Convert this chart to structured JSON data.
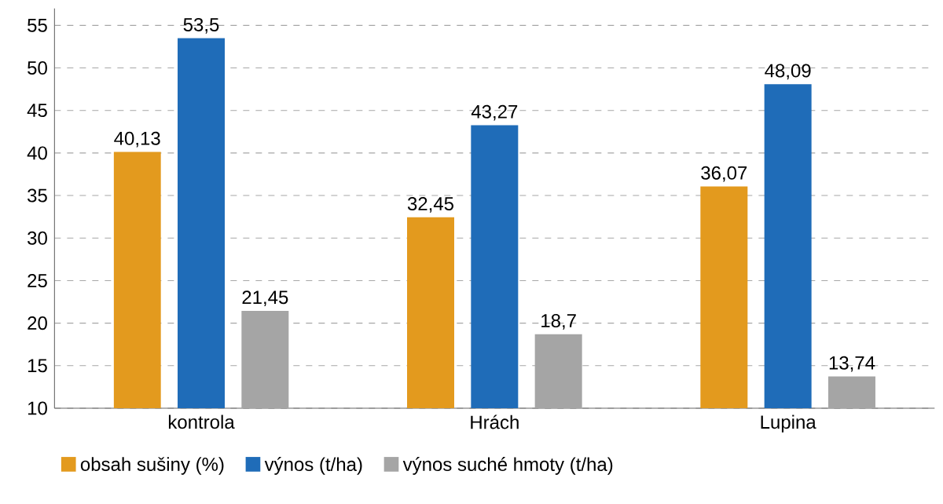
{
  "chart_data": {
    "type": "bar",
    "categories": [
      "kontrola",
      "Hrách",
      "Lupina"
    ],
    "series": [
      {
        "name": "obsah sušiny (%)",
        "color": "#e39a1e",
        "values": [
          40.13,
          32.45,
          36.07
        ],
        "value_labels": [
          "40,13",
          "32,45",
          "36,07"
        ]
      },
      {
        "name": "výnos (t/ha)",
        "color": "#1f6cb8",
        "values": [
          53.5,
          43.27,
          48.09
        ],
        "value_labels": [
          "53,5",
          "43,27",
          "48,09"
        ]
      },
      {
        "name": "výnos suché hmoty (t/ha)",
        "color": "#a5a5a5",
        "values": [
          21.45,
          18.7,
          13.74
        ],
        "value_labels": [
          "21,45",
          "18,7",
          "13,74"
        ]
      }
    ],
    "ylim": [
      10,
      57
    ],
    "yticks": [
      10,
      15,
      20,
      25,
      30,
      35,
      40,
      45,
      50,
      55
    ],
    "grid": "y",
    "legend": "bottom left"
  }
}
